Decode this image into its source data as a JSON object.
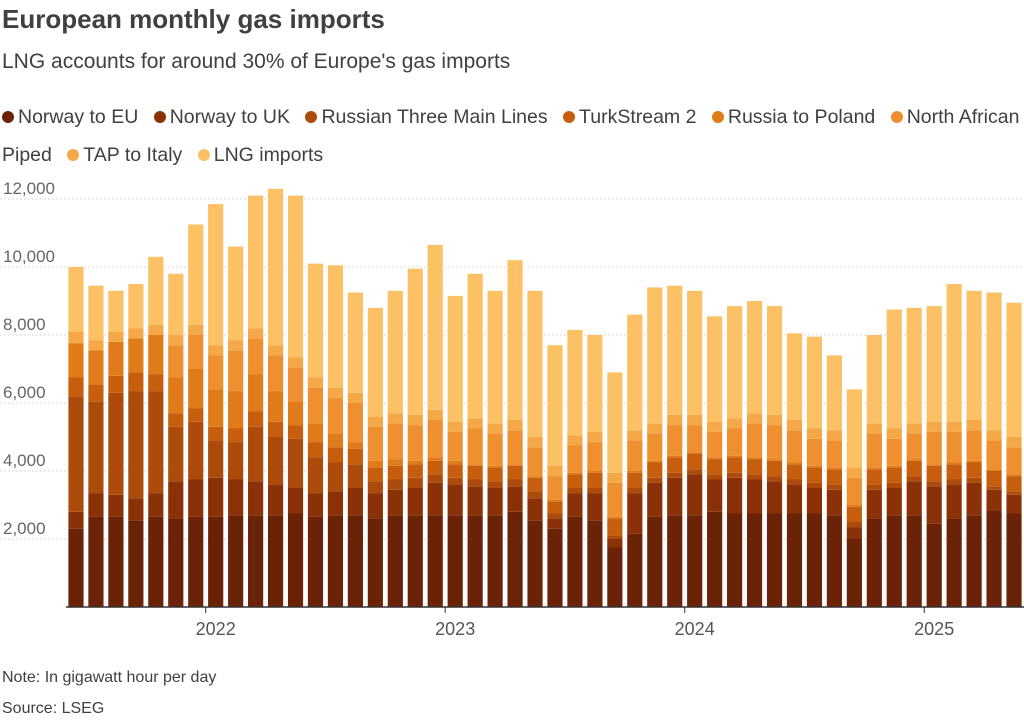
{
  "title": "European monthly gas imports",
  "subtitle": "LNG accounts for around 30% of Europe's gas imports",
  "note": "Note: In gigawatt hour per day",
  "source": "Source: LSEG",
  "chart_data": {
    "type": "bar",
    "stacked": true,
    "title": "European monthly gas imports",
    "subtitle": "LNG accounts for around 30% of Europe's gas imports",
    "x": [
      "2021-06",
      "2021-07",
      "2021-08",
      "2021-09",
      "2021-10",
      "2021-11",
      "2021-12",
      "2022-01",
      "2022-02",
      "2022-03",
      "2022-04",
      "2022-05",
      "2022-06",
      "2022-07",
      "2022-08",
      "2022-09",
      "2022-10",
      "2022-11",
      "2022-12",
      "2023-01",
      "2023-02",
      "2023-03",
      "2023-04",
      "2023-05",
      "2023-06",
      "2023-07",
      "2023-08",
      "2023-09",
      "2023-10",
      "2023-11",
      "2023-12",
      "2024-01",
      "2024-02",
      "2024-03",
      "2024-04",
      "2024-05",
      "2024-06",
      "2024-07",
      "2024-08",
      "2024-09",
      "2024-10",
      "2024-11",
      "2024-12",
      "2025-01",
      "2025-02",
      "2025-03",
      "2025-04",
      "2025-05"
    ],
    "xticks": [
      "2022",
      "2023",
      "2024",
      "2025"
    ],
    "ylim": [
      0,
      12000
    ],
    "yticks": [
      2000,
      4000,
      6000,
      8000,
      10000,
      12000
    ],
    "ytick_labels": [
      "2,000",
      "4,000",
      "6,000",
      "8,000",
      "10,000",
      "12,000"
    ],
    "grid": true,
    "legend_position": "top",
    "series": [
      {
        "name": "Norway to EU",
        "color": "#6b2308",
        "values": [
          2300,
          2650,
          2650,
          2550,
          2650,
          2600,
          2650,
          2650,
          2700,
          2700,
          2700,
          2750,
          2650,
          2700,
          2700,
          2600,
          2700,
          2700,
          2700,
          2700,
          2700,
          2700,
          2800,
          2550,
          2300,
          2650,
          2550,
          1750,
          2150,
          2650,
          2700,
          2700,
          2800,
          2750,
          2750,
          2750,
          2750,
          2750,
          2700,
          2000,
          2600,
          2700,
          2700,
          2450,
          2600,
          2700,
          2850,
          2750
        ]
      },
      {
        "name": "Norway to UK",
        "color": "#8b3108",
        "values": [
          500,
          700,
          650,
          650,
          700,
          1100,
          1100,
          1150,
          1050,
          1000,
          900,
          750,
          700,
          700,
          800,
          750,
          750,
          800,
          950,
          900,
          850,
          800,
          750,
          650,
          300,
          700,
          800,
          250,
          1200,
          1000,
          1100,
          1200,
          950,
          1050,
          1000,
          950,
          850,
          750,
          750,
          350,
          850,
          800,
          1000,
          1100,
          1000,
          950,
          600,
          550
        ]
      },
      {
        "name": "Russian Three Main Lines",
        "color": "#ac4b0c",
        "values": [
          3400,
          2700,
          3000,
          3150,
          3000,
          1600,
          1700,
          1100,
          1100,
          1600,
          1400,
          1450,
          1050,
          850,
          700,
          350,
          300,
          300,
          250,
          200,
          200,
          200,
          200,
          200,
          150,
          150,
          150,
          100,
          150,
          150,
          150,
          150,
          150,
          150,
          150,
          150,
          150,
          150,
          150,
          150,
          150,
          150,
          150,
          150,
          150,
          150,
          100,
          100
        ]
      },
      {
        "name": "TurkStream 2",
        "color": "#c65e0e",
        "values": [
          550,
          500,
          500,
          550,
          500,
          400,
          400,
          400,
          400,
          450,
          450,
          400,
          450,
          450,
          450,
          400,
          400,
          400,
          400,
          400,
          400,
          400,
          400,
          400,
          350,
          400,
          450,
          500,
          450,
          450,
          450,
          450,
          450,
          450,
          450,
          450,
          450,
          450,
          450,
          450,
          450,
          450,
          450,
          450,
          450,
          450,
          450,
          450
        ]
      },
      {
        "name": "Russia to Poland",
        "color": "#e07b1a",
        "values": [
          1000,
          1000,
          1000,
          1000,
          1150,
          1050,
          1150,
          1100,
          1100,
          1100,
          900,
          700,
          550,
          400,
          200,
          200,
          200,
          100,
          100,
          100,
          50,
          50,
          50,
          50,
          50,
          50,
          50,
          50,
          50,
          50,
          50,
          50,
          50,
          50,
          50,
          50,
          50,
          50,
          50,
          50,
          50,
          50,
          50,
          50,
          50,
          50,
          50,
          50
        ]
      },
      {
        "name": "North African Piped",
        "color": "#ee9030",
        "values": [
          0,
          0,
          0,
          0,
          0,
          950,
          1000,
          1000,
          1200,
          1050,
          1050,
          1000,
          1050,
          1050,
          1150,
          1000,
          1050,
          1050,
          1100,
          850,
          1050,
          950,
          1000,
          850,
          700,
          800,
          850,
          1000,
          900,
          800,
          900,
          800,
          750,
          800,
          1000,
          1000,
          950,
          800,
          800,
          800,
          1000,
          800,
          750,
          950,
          900,
          900,
          850,
          800
        ]
      },
      {
        "name": "TAP to Italy",
        "color": "#f5a848",
        "values": [
          350,
          300,
          300,
          300,
          300,
          300,
          300,
          300,
          300,
          300,
          300,
          300,
          300,
          300,
          300,
          300,
          300,
          300,
          300,
          300,
          300,
          300,
          300,
          300,
          300,
          300,
          300,
          300,
          300,
          300,
          300,
          300,
          300,
          300,
          300,
          300,
          300,
          300,
          300,
          300,
          300,
          300,
          300,
          300,
          300,
          300,
          300,
          300
        ]
      },
      {
        "name": "LNG imports",
        "color": "#fcc164",
        "values": [
          1900,
          1600,
          1200,
          1300,
          2000,
          1800,
          2950,
          4150,
          2750,
          3900,
          4600,
          4750,
          3350,
          3600,
          2950,
          3200,
          3600,
          4300,
          4850,
          3700,
          4250,
          3900,
          4700,
          4300,
          3550,
          3100,
          2850,
          2950,
          3400,
          4000,
          3800,
          3650,
          3100,
          3300,
          3300,
          3200,
          2550,
          2700,
          2200,
          2300,
          2600,
          3500,
          3400,
          3400,
          4050,
          3800,
          4050,
          3950
        ]
      }
    ]
  }
}
